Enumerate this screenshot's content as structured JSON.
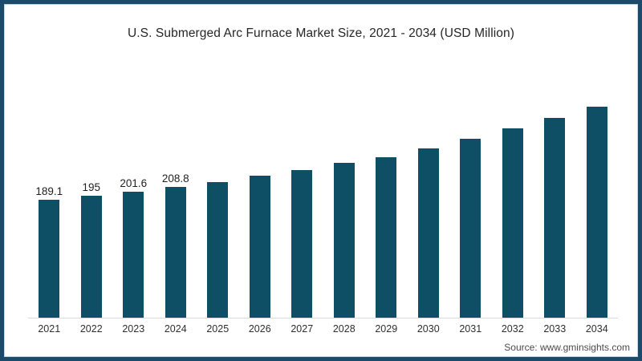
{
  "source_text": "Source: www.gminsights.com",
  "colors": {
    "bar": "#0f4f66",
    "border": "#1b4a6b",
    "axis": "#d9d9d9",
    "background": "#ffffff"
  },
  "chart_data": {
    "type": "bar",
    "title": "U.S. Submerged Arc Furnace Market Size, 2021 - 2034 (USD Million)",
    "categories": [
      "2021",
      "2022",
      "2023",
      "2024",
      "2025",
      "2026",
      "2027",
      "2028",
      "2029",
      "2030",
      "2031",
      "2032",
      "2033",
      "2034"
    ],
    "values": [
      189.1,
      195,
      201.6,
      208.8,
      217,
      227,
      236,
      247,
      257,
      271,
      286,
      302,
      319,
      337
    ],
    "data_labels": [
      "189.1",
      "195",
      "201.6",
      "208.8",
      "",
      "",
      "",
      "",
      "",
      "",
      "",
      "",
      "",
      ""
    ],
    "xlabel": "",
    "ylabel": "",
    "ylim": [
      0,
      400
    ],
    "grid": false,
    "legend": "none",
    "y_axis_shown": false
  }
}
